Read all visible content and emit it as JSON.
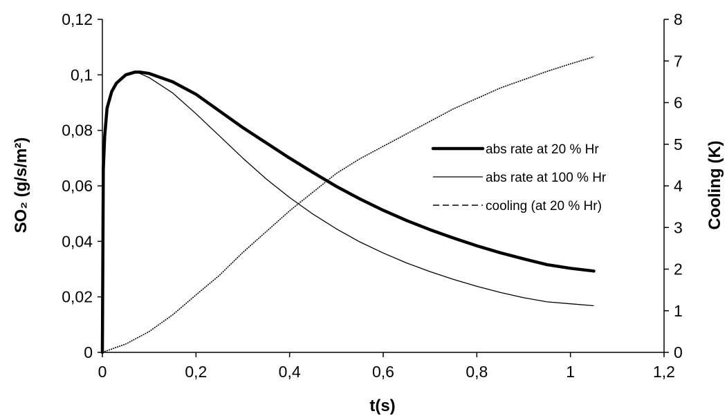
{
  "chart_data": {
    "type": "line",
    "title": "",
    "xlabel": "t(s)",
    "ylabel_left": "SO₂ (g/s/m²)",
    "ylabel_right": "Cooling (K)",
    "xlim": [
      0,
      1.2
    ],
    "ylim_left": [
      0,
      0.12
    ],
    "ylim_right": [
      0,
      8
    ],
    "x_ticks": [
      "0",
      "0,2",
      "0,4",
      "0,6",
      "0,8",
      "1",
      "1,2"
    ],
    "y_left_ticks": [
      "0",
      "0,02",
      "0,04",
      "0,06",
      "0,08",
      "0,1",
      "0,12"
    ],
    "y_right_ticks": [
      "0",
      "1",
      "2",
      "3",
      "4",
      "5",
      "6",
      "7",
      "8"
    ],
    "grid": false,
    "legend_position": "right",
    "series": [
      {
        "name": "abs rate at 20 % Hr",
        "axis": "left",
        "style": "thick",
        "x": [
          0,
          0.002,
          0.005,
          0.01,
          0.02,
          0.03,
          0.05,
          0.07,
          0.08,
          0.1,
          0.15,
          0.2,
          0.25,
          0.3,
          0.35,
          0.4,
          0.45,
          0.5,
          0.55,
          0.6,
          0.65,
          0.7,
          0.75,
          0.8,
          0.85,
          0.9,
          0.95,
          1.0,
          1.05
        ],
        "y": [
          0.0,
          0.066,
          0.078,
          0.088,
          0.094,
          0.097,
          0.1,
          0.101,
          0.101,
          0.1005,
          0.0975,
          0.093,
          0.087,
          0.081,
          0.0755,
          0.07,
          0.0648,
          0.0598,
          0.0553,
          0.0512,
          0.0475,
          0.0442,
          0.0412,
          0.0384,
          0.0359,
          0.0337,
          0.0316,
          0.0303,
          0.0293
        ]
      },
      {
        "name": "abs rate at 100 % Hr",
        "axis": "left",
        "style": "thin",
        "x": [
          0,
          0.002,
          0.005,
          0.01,
          0.02,
          0.03,
          0.05,
          0.07,
          0.08,
          0.1,
          0.15,
          0.2,
          0.25,
          0.3,
          0.35,
          0.4,
          0.45,
          0.5,
          0.55,
          0.6,
          0.65,
          0.7,
          0.75,
          0.8,
          0.85,
          0.9,
          0.95,
          1.0,
          1.05
        ],
        "y": [
          0.0,
          0.066,
          0.078,
          0.088,
          0.094,
          0.097,
          0.1,
          0.101,
          0.1005,
          0.099,
          0.0935,
          0.086,
          0.078,
          0.07,
          0.0625,
          0.0558,
          0.0498,
          0.0445,
          0.0398,
          0.0358,
          0.0322,
          0.0291,
          0.0263,
          0.0238,
          0.0216,
          0.0197,
          0.0182,
          0.0175,
          0.0168
        ]
      },
      {
        "name": "cooling (at 20 % Hr)",
        "axis": "right",
        "style": "dashed",
        "x": [
          0,
          0.05,
          0.1,
          0.15,
          0.2,
          0.25,
          0.3,
          0.35,
          0.4,
          0.45,
          0.5,
          0.55,
          0.6,
          0.65,
          0.7,
          0.75,
          0.8,
          0.85,
          0.9,
          0.95,
          1.0,
          1.05
        ],
        "y": [
          0.0,
          0.2,
          0.5,
          0.9,
          1.38,
          1.85,
          2.4,
          2.9,
          3.4,
          3.85,
          4.3,
          4.65,
          4.95,
          5.25,
          5.55,
          5.85,
          6.1,
          6.35,
          6.55,
          6.75,
          6.93,
          7.1
        ]
      }
    ]
  }
}
